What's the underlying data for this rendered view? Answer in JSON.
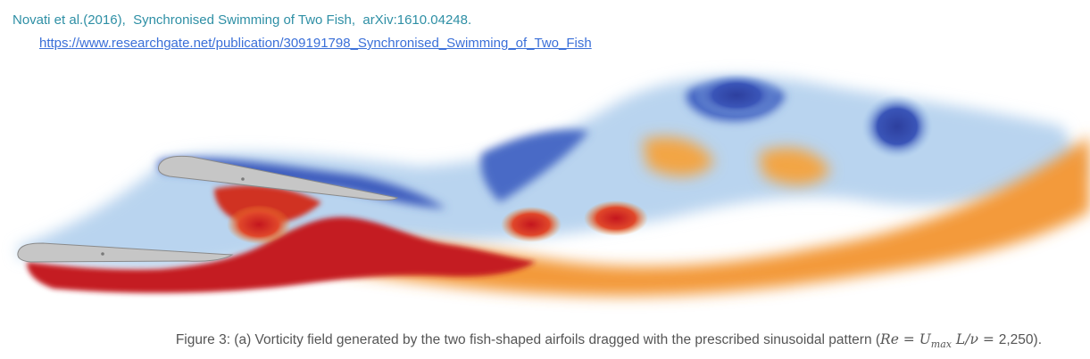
{
  "header": {
    "citation": "Novati et al.(2016),  Synchronised Swimming of Two Fish,  arXiv:1610.04248.",
    "link": "https://www.researchgate.net/publication/309191798_Synchronised_Swimming_of_Two_Fish"
  },
  "caption": {
    "text": "Figure 3: (a) Vorticity field generated by the two fish-shaped airfoils dragged with the prescribed sinusoidal pattern (",
    "math_re": "Re",
    "math_eq1": " = ",
    "math_u": "U",
    "math_sub": "max",
    "math_l": " L",
    "math_nu": "/ν",
    "math_eq2": " = ",
    "value": "2,250",
    "tail": ")."
  },
  "colors": {
    "negative_vorticity": "#3348a8",
    "positive_vorticity": "#c8202a",
    "orange_wake": "#f0862a",
    "airfoil": "#c8c8c8",
    "citation_text": "#2e8fa5",
    "link_text": "#3a6fd8"
  }
}
